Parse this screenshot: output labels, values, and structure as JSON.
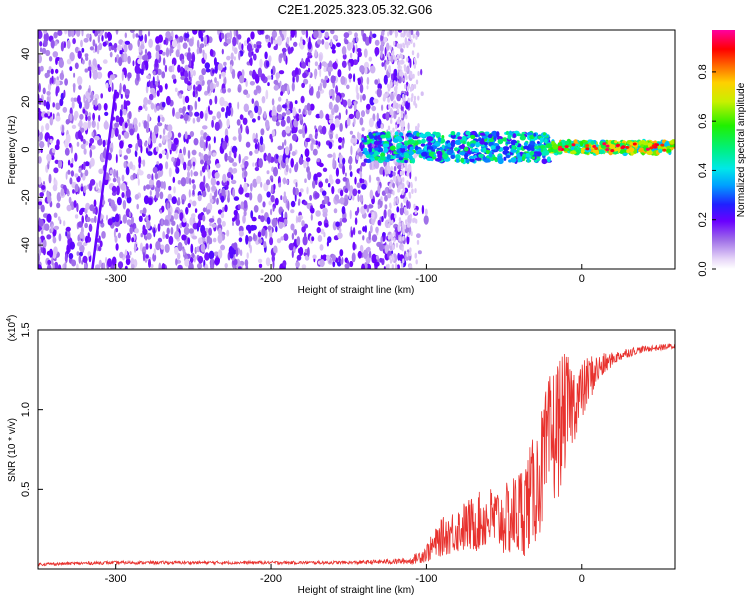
{
  "figure": {
    "title": "C2E1.2025.323.05.32.G06"
  },
  "chart_data": [
    {
      "type": "heatmap",
      "title": "C2E1.2025.323.05.32.G06",
      "xlabel": "Height of straight line (km)",
      "ylabel": "Frequency (Hz)",
      "xlim": [
        -350,
        60
      ],
      "ylim": [
        -50,
        50
      ],
      "x_ticks": [
        -300,
        -200,
        -100,
        0
      ],
      "x_tick_labels": [
        "-300",
        "-200",
        "-100",
        "0"
      ],
      "y_ticks": [
        -40,
        -20,
        0,
        20,
        40
      ],
      "y_tick_labels": [
        "-40",
        "-20",
        "0",
        "20",
        "40"
      ],
      "colorbar": {
        "label": "Normalized spectral amplitude",
        "range": [
          0,
          0.97
        ],
        "ticks": [
          0.0,
          0.2,
          0.4,
          0.6,
          0.8
        ],
        "tick_labels": [
          "0.0",
          "0.2",
          "0.4",
          "0.6",
          "0.8"
        ]
      },
      "regions": [
        {
          "x_range": [
            -350,
            -115
          ],
          "freq_range": [
            -50,
            50
          ],
          "amplitude": "low (0.1-0.2), scattered noise",
          "color": "purple"
        },
        {
          "x_range": [
            -140,
            60
          ],
          "freq_range": [
            -5,
            5
          ],
          "amplitude": "0.2-0.6 band near 0 Hz",
          "color": "blue/cyan/green"
        },
        {
          "x_range": [
            -20,
            60
          ],
          "freq_range": [
            -2,
            3
          ],
          "amplitude": "0.6-0.9 peaks",
          "color": "orange/red"
        }
      ],
      "grid": false
    },
    {
      "type": "line",
      "xlabel": "Height of straight line (km)",
      "ylabel": "SNR (10 * v/v)",
      "y_multiplier": "(x10^4)",
      "multiplier_prefix": "(x10",
      "multiplier_exp": "4",
      "multiplier_suffix": ")",
      "xlim": [
        -350,
        60
      ],
      "ylim": [
        0,
        1.5
      ],
      "x_ticks": [
        -300,
        -200,
        -100,
        0
      ],
      "x_tick_labels": [
        "-300",
        "-200",
        "-100",
        "0"
      ],
      "y_ticks": [
        0.5,
        1.0,
        1.5
      ],
      "y_tick_labels": [
        "0.5",
        "1.0",
        "1.5"
      ],
      "series": [
        {
          "color": "#e8322e",
          "x": [
            -350,
            -300,
            -250,
            -200,
            -150,
            -110,
            -100,
            -90,
            -80,
            -70,
            -60,
            -50,
            -40,
            -30,
            -25,
            -20,
            -15,
            -10,
            -5,
            0,
            5,
            10,
            20,
            30,
            40,
            50,
            60
          ],
          "y": [
            0.03,
            0.04,
            0.04,
            0.04,
            0.04,
            0.05,
            0.1,
            0.2,
            0.25,
            0.28,
            0.32,
            0.3,
            0.35,
            0.5,
            0.65,
            0.8,
            0.9,
            1.0,
            1.05,
            1.1,
            1.2,
            1.25,
            1.32,
            1.36,
            1.38,
            1.39,
            1.4
          ],
          "noise_amplitude": [
            0.01,
            0.01,
            0.01,
            0.01,
            0.01,
            0.02,
            0.06,
            0.12,
            0.15,
            0.18,
            0.2,
            0.22,
            0.3,
            0.35,
            0.4,
            0.45,
            0.45,
            0.35,
            0.25,
            0.2,
            0.15,
            0.1,
            0.04,
            0.03,
            0.02,
            0.02,
            0.02
          ]
        }
      ],
      "grid": false
    }
  ]
}
